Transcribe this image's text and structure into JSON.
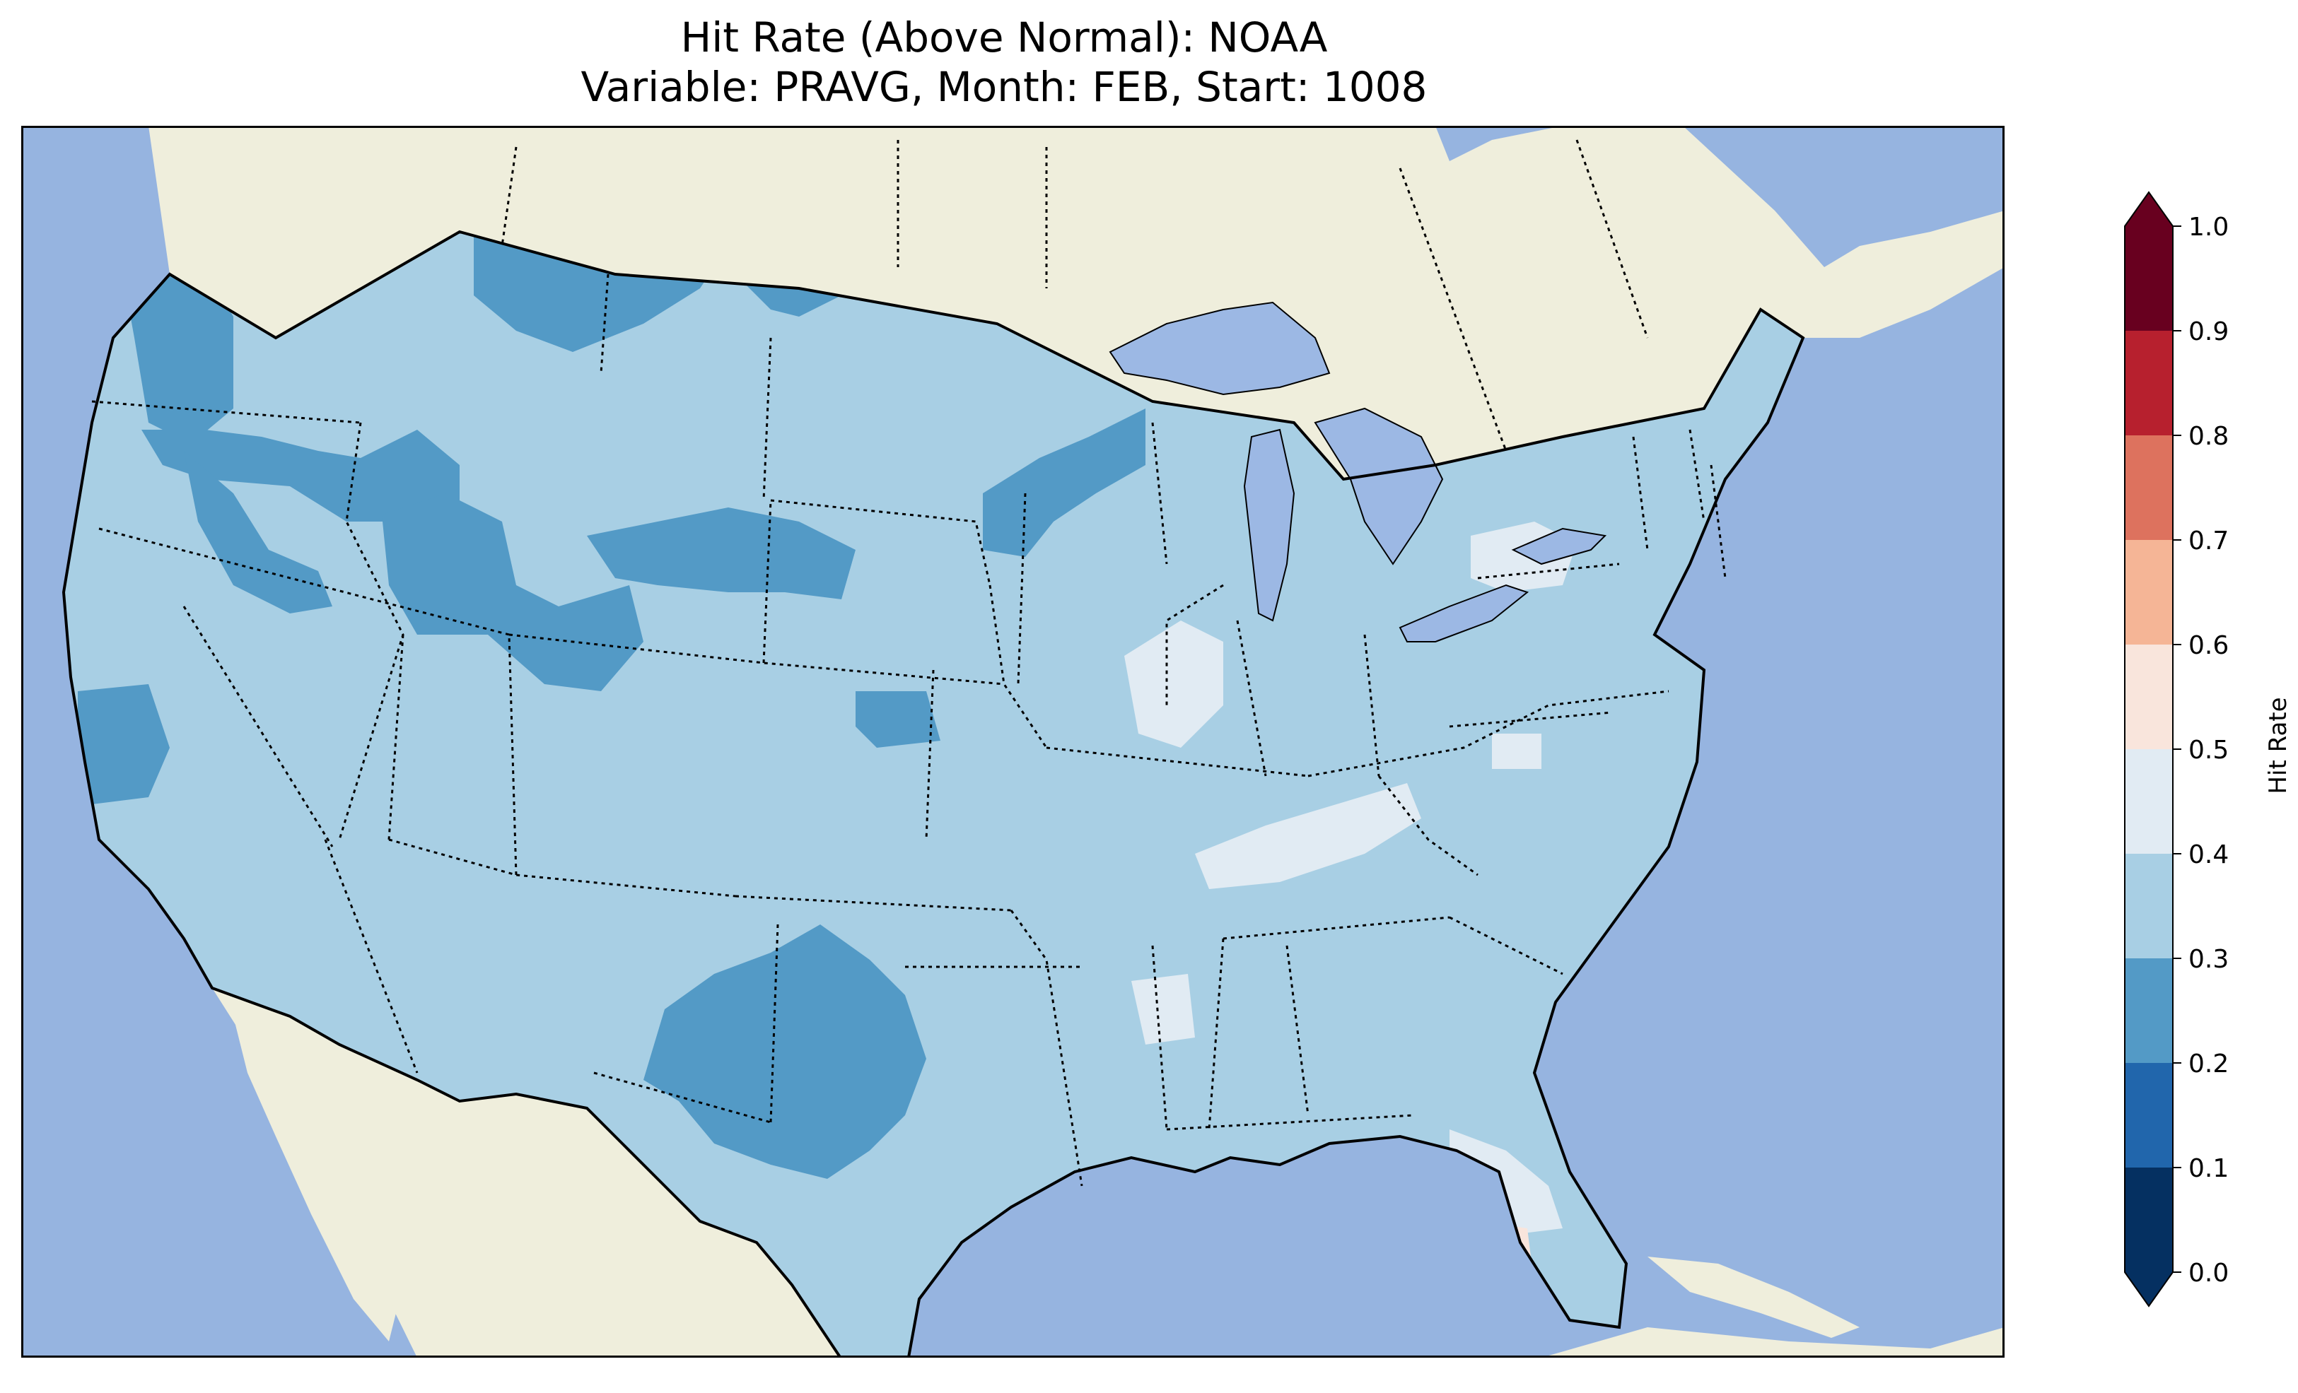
{
  "title": {
    "line1": "Hit Rate (Above Normal): NOAA",
    "line2": "Variable: PRAVG, Month: FEB, Start: 1008"
  },
  "colors": {
    "ocean": "#96b4e0",
    "land": "#efeedc",
    "lakes": "#9cb8e4",
    "border": "#000000"
  },
  "colorbar": {
    "label": "Hit Rate",
    "ticks": [
      "0.0",
      "0.1",
      "0.2",
      "0.3",
      "0.4",
      "0.5",
      "0.6",
      "0.7",
      "0.8",
      "0.9",
      "1.0"
    ],
    "bins": [
      {
        "range": [
          0.0,
          0.1
        ],
        "color": "#053061"
      },
      {
        "range": [
          0.1,
          0.2
        ],
        "color": "#2166ac"
      },
      {
        "range": [
          0.2,
          0.3
        ],
        "color": "#539ac6"
      },
      {
        "range": [
          0.3,
          0.4
        ],
        "color": "#a8cfe4"
      },
      {
        "range": [
          0.4,
          0.5
        ],
        "color": "#e1ebf3"
      },
      {
        "range": [
          0.5,
          0.6
        ],
        "color": "#f9e5dc"
      },
      {
        "range": [
          0.6,
          0.7
        ],
        "color": "#f5b596"
      },
      {
        "range": [
          0.7,
          0.8
        ],
        "color": "#dd725e"
      },
      {
        "range": [
          0.8,
          0.9
        ],
        "color": "#b7202e"
      },
      {
        "range": [
          0.9,
          1.0
        ],
        "color": "#68001f"
      }
    ],
    "extend": "both"
  },
  "map": {
    "base_value": 0.35,
    "regions": [
      {
        "name": "pacific-northwest-a",
        "value": 0.25
      },
      {
        "name": "pacific-northwest-b",
        "value": 0.25
      },
      {
        "name": "idaho-montana-band",
        "value": 0.25
      },
      {
        "name": "montana-north",
        "value": 0.25
      },
      {
        "name": "north-dakota",
        "value": 0.25
      },
      {
        "name": "utah-colorado",
        "value": 0.25
      },
      {
        "name": "nevada-band",
        "value": 0.25
      },
      {
        "name": "nebraska-wyoming",
        "value": 0.25
      },
      {
        "name": "minnesota-wisconsin",
        "value": 0.25
      },
      {
        "name": "kansas",
        "value": 0.25
      },
      {
        "name": "california-central",
        "value": 0.25
      },
      {
        "name": "texas-west-central",
        "value": 0.25
      },
      {
        "name": "illinois-indiana",
        "value": 0.45
      },
      {
        "name": "tennessee-kentucky",
        "value": 0.45
      },
      {
        "name": "pennsylvania",
        "value": 0.45
      },
      {
        "name": "mississippi",
        "value": 0.45
      },
      {
        "name": "carolinas",
        "value": 0.45
      },
      {
        "name": "florida-central",
        "value": 0.45
      },
      {
        "name": "florida-southwest",
        "value": 0.55
      }
    ]
  }
}
